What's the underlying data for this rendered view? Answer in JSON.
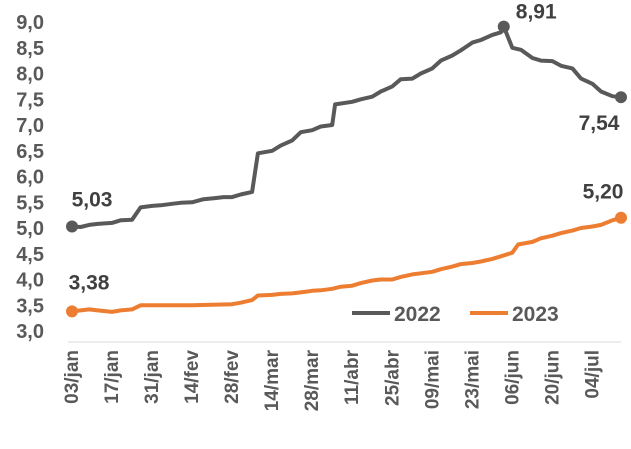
{
  "chart_data": {
    "type": "line",
    "title": "",
    "xlabel": "",
    "ylabel": "",
    "ylim": [
      3.0,
      9.0
    ],
    "grid": false,
    "legend_position": "bottom-right",
    "y_ticks": [
      "3,0",
      "3,5",
      "4,0",
      "4,5",
      "5,0",
      "5,5",
      "6,0",
      "6,5",
      "7,0",
      "7,5",
      "8,0",
      "8,5",
      "9,0"
    ],
    "y_tick_values": [
      3.0,
      3.5,
      4.0,
      4.5,
      5.0,
      5.5,
      6.0,
      6.5,
      7.0,
      7.5,
      8.0,
      8.5,
      9.0
    ],
    "x_ticks": [
      "03/jan",
      "17/jan",
      "31/jan",
      "14/fev",
      "28/fev",
      "14/mar",
      "28/mar",
      "11/abr",
      "25/abr",
      "09/mai",
      "23/mai",
      "06/jun",
      "20/jun",
      "04/jul"
    ],
    "x_tick_values": [
      "01-03",
      "01-17",
      "01-31",
      "02-14",
      "02-28",
      "03-14",
      "03-28",
      "04-11",
      "04-25",
      "05-09",
      "05-23",
      "06-06",
      "06-20",
      "07-04"
    ],
    "x_range": [
      "01-03",
      "07-14"
    ],
    "series": [
      {
        "name": "2022",
        "color": "#595959",
        "points": [
          [
            "01-03",
            5.03
          ],
          [
            "01-06",
            5.02
          ],
          [
            "01-09",
            5.06
          ],
          [
            "01-12",
            5.08
          ],
          [
            "01-17",
            5.1
          ],
          [
            "01-20",
            5.15
          ],
          [
            "01-24",
            5.16
          ],
          [
            "01-27",
            5.4
          ],
          [
            "01-31",
            5.43
          ],
          [
            "02-03",
            5.44
          ],
          [
            "02-07",
            5.47
          ],
          [
            "02-10",
            5.49
          ],
          [
            "02-14",
            5.5
          ],
          [
            "02-18",
            5.56
          ],
          [
            "02-22",
            5.58
          ],
          [
            "02-25",
            5.6
          ],
          [
            "02-28",
            5.6
          ],
          [
            "03-03",
            5.65
          ],
          [
            "03-07",
            5.7
          ],
          [
            "03-09",
            6.45
          ],
          [
            "03-14",
            6.5
          ],
          [
            "03-17",
            6.6
          ],
          [
            "03-21",
            6.7
          ],
          [
            "03-24",
            6.86
          ],
          [
            "03-28",
            6.9
          ],
          [
            "03-31",
            6.97
          ],
          [
            "04-04",
            7.0
          ],
          [
            "04-05",
            7.4
          ],
          [
            "04-11",
            7.45
          ],
          [
            "04-14",
            7.5
          ],
          [
            "04-18",
            7.55
          ],
          [
            "04-21",
            7.65
          ],
          [
            "04-25",
            7.75
          ],
          [
            "04-28",
            7.89
          ],
          [
            "05-02",
            7.9
          ],
          [
            "05-05",
            8.0
          ],
          [
            "05-09",
            8.1
          ],
          [
            "05-12",
            8.25
          ],
          [
            "05-16",
            8.35
          ],
          [
            "05-19",
            8.45
          ],
          [
            "05-23",
            8.6
          ],
          [
            "05-26",
            8.65
          ],
          [
            "05-30",
            8.75
          ],
          [
            "06-02",
            8.8
          ],
          [
            "06-03",
            8.91
          ],
          [
            "06-06",
            8.5
          ],
          [
            "06-09",
            8.46
          ],
          [
            "06-13",
            8.3
          ],
          [
            "06-16",
            8.25
          ],
          [
            "06-20",
            8.24
          ],
          [
            "06-23",
            8.15
          ],
          [
            "06-27",
            8.1
          ],
          [
            "06-30",
            7.9
          ],
          [
            "07-04",
            7.8
          ],
          [
            "07-07",
            7.65
          ],
          [
            "07-11",
            7.56
          ],
          [
            "07-14",
            7.54
          ]
        ],
        "labels": [
          {
            "at": "01-03",
            "text": "5,03"
          },
          {
            "at": "06-03",
            "text": "8,91"
          },
          {
            "at": "07-14",
            "text": "7,54"
          }
        ]
      },
      {
        "name": "2023",
        "color": "#ed7d31",
        "points": [
          [
            "01-03",
            3.38
          ],
          [
            "01-06",
            3.4
          ],
          [
            "01-09",
            3.42
          ],
          [
            "01-12",
            3.4
          ],
          [
            "01-17",
            3.37
          ],
          [
            "01-20",
            3.4
          ],
          [
            "01-24",
            3.42
          ],
          [
            "01-27",
            3.5
          ],
          [
            "01-31",
            3.5
          ],
          [
            "02-14",
            3.5
          ],
          [
            "02-28",
            3.52
          ],
          [
            "03-03",
            3.55
          ],
          [
            "03-07",
            3.6
          ],
          [
            "03-09",
            3.69
          ],
          [
            "03-14",
            3.7
          ],
          [
            "03-17",
            3.72
          ],
          [
            "03-21",
            3.73
          ],
          [
            "03-24",
            3.75
          ],
          [
            "03-28",
            3.78
          ],
          [
            "03-31",
            3.79
          ],
          [
            "04-04",
            3.82
          ],
          [
            "04-07",
            3.86
          ],
          [
            "04-11",
            3.88
          ],
          [
            "04-14",
            3.93
          ],
          [
            "04-18",
            3.98
          ],
          [
            "04-21",
            4.0
          ],
          [
            "04-25",
            4.0
          ],
          [
            "04-28",
            4.05
          ],
          [
            "05-02",
            4.1
          ],
          [
            "05-05",
            4.12
          ],
          [
            "05-09",
            4.15
          ],
          [
            "05-12",
            4.2
          ],
          [
            "05-16",
            4.25
          ],
          [
            "05-19",
            4.3
          ],
          [
            "05-23",
            4.32
          ],
          [
            "05-26",
            4.35
          ],
          [
            "05-30",
            4.4
          ],
          [
            "06-02",
            4.45
          ],
          [
            "06-06",
            4.52
          ],
          [
            "06-08",
            4.68
          ],
          [
            "06-13",
            4.73
          ],
          [
            "06-16",
            4.8
          ],
          [
            "06-20",
            4.85
          ],
          [
            "06-23",
            4.9
          ],
          [
            "06-27",
            4.95
          ],
          [
            "06-30",
            5.0
          ],
          [
            "07-04",
            5.03
          ],
          [
            "07-07",
            5.06
          ],
          [
            "07-11",
            5.15
          ],
          [
            "07-14",
            5.2
          ]
        ],
        "labels": [
          {
            "at": "01-03",
            "text": "3,38"
          },
          {
            "at": "07-14",
            "text": "5,20"
          }
        ]
      }
    ]
  }
}
